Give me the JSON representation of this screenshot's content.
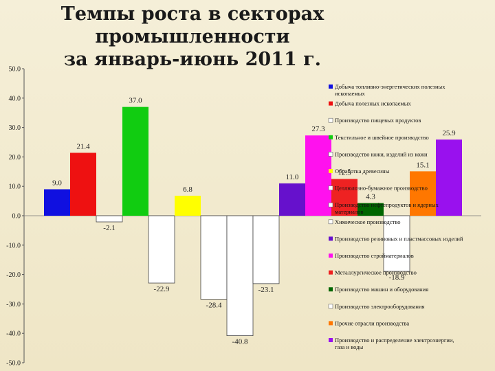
{
  "title_line1": "Темпы роста в секторах промышленности",
  "title_line2": "за январь-июнь 2011 г.",
  "chart_data": {
    "type": "bar",
    "ylim": [
      -50,
      50
    ],
    "yticks": [
      "50.0",
      "40.0",
      "30.0",
      "20.0",
      "10.0",
      "0.0",
      "-10.0",
      "-20.0",
      "-30.0",
      "-40.0",
      "-50.0"
    ],
    "grid": false,
    "legend_position": "right",
    "series": [
      {
        "name": "Добыча топливно-энергетических полезных ископаемых",
        "value": 9.0,
        "label": "9.0",
        "color": "#1010e0"
      },
      {
        "name": "Добыча полезных ископаемых",
        "value": 21.4,
        "label": "21.4",
        "color": "#ee1111"
      },
      {
        "name": "Производство пищевых продуктов",
        "value": -2.1,
        "label": "-2.1",
        "color": "#ffffff"
      },
      {
        "name": "Текстильное и швейное производство",
        "value": 37.0,
        "label": "37.0",
        "color": "#11cc11"
      },
      {
        "name": "Производство кожи, изделий из кожи",
        "value": -22.9,
        "label": "-22.9",
        "color": "#ffffff"
      },
      {
        "name": "Обработка древесины",
        "value": 6.8,
        "label": "6.8",
        "color": "#ffff00"
      },
      {
        "name": "Целлюлозно-бумажное производство",
        "value": -28.4,
        "label": "-28.4",
        "color": "#ffffff"
      },
      {
        "name": "Производство нефтепродуктов и ядерных материалов",
        "value": -40.8,
        "label": "-40.8",
        "color": "#ffffff"
      },
      {
        "name": "Химическое производство",
        "value": -23.1,
        "label": "-23.1",
        "color": "#ffffff"
      },
      {
        "name": "Производство резиновых и пластмассовых изделий",
        "value": 11.0,
        "label": "11.0",
        "color": "#6611cc"
      },
      {
        "name": "Производство стройматериалов",
        "value": 27.3,
        "label": "27.3",
        "color": "#ff11ee"
      },
      {
        "name": "Металлургическое производство",
        "value": 12.5,
        "label": "12.5",
        "color": "#ee2222"
      },
      {
        "name": "Производство машин и оборудования",
        "value": 4.3,
        "label": "4.3",
        "color": "#006600"
      },
      {
        "name": "Производство электрооборудования",
        "value": -18.9,
        "label": "-18.9",
        "color": "#ffffff"
      },
      {
        "name": "Прочие отрасли производства",
        "value": 15.1,
        "label": "15.1",
        "color": "#ff7700"
      },
      {
        "name": "Производство и распределение электроэнергии, газа и воды",
        "value": 25.9,
        "label": "25.9",
        "color": "#9911ee"
      }
    ]
  }
}
